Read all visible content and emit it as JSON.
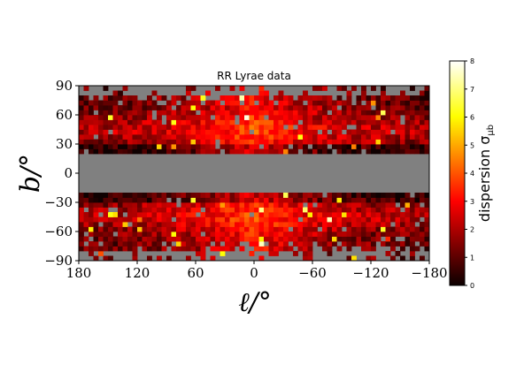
{
  "chart_data": {
    "type": "heatmap",
    "title": "RR Lyrae data",
    "xlabel": "ℓ/°",
    "ylabel": "b/°",
    "x_axis": {
      "lim": [
        180,
        -180
      ],
      "ticks": [
        180,
        120,
        60,
        0,
        -60,
        -120,
        -180
      ],
      "tick_labels": [
        "180",
        "120",
        "60",
        "0",
        "−60",
        "−120",
        "−180"
      ]
    },
    "y_axis": {
      "lim": [
        -90,
        90
      ],
      "ticks": [
        90,
        60,
        30,
        0,
        -30,
        -60,
        -90
      ],
      "tick_labels": [
        "90",
        "60",
        "30",
        "0",
        "−30",
        "−60",
        "−90"
      ]
    },
    "colorbar": {
      "label": "dispersion σ",
      "label_subscript": "μb",
      "colormap": "hot",
      "range": [
        0,
        8
      ],
      "ticks": [
        0,
        1,
        2,
        3,
        4,
        5,
        6,
        7,
        8
      ],
      "tick_labels": [
        "0",
        "1",
        "2",
        "3",
        "4",
        "5",
        "6",
        "7",
        "8"
      ]
    },
    "bins": {
      "l_bins": 72,
      "b_bins": 36,
      "l_bin_width_deg": 5,
      "b_bin_width_deg": 5
    },
    "masked_color": "#808080",
    "masked_region": "|b| < 20° (Galactic plane) and sparse high-|b| bins",
    "value_description": "dispersion mostly 0.5–3.5; higher (3–5) near the Galactic center at |b| 30–60; isolated outliers up to ~7",
    "grid": false
  }
}
